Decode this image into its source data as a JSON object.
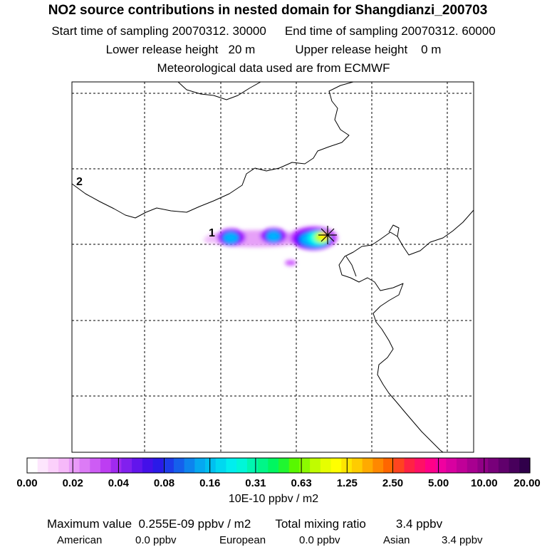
{
  "header": {
    "title": "NO2 source contributions in nested domain for Shangdianzi_200703",
    "start_label": "Start time of sampling 20070312. 30000",
    "end_label": "End time of sampling 20070312. 60000",
    "lower_label": "Lower release height   20 m",
    "upper_label": "Upper release height    0 m",
    "met_label": "Meteorological data used are from ECMWF"
  },
  "map": {
    "markers": [
      {
        "label": "1",
        "lon": 116.1,
        "lat": 40.0
      },
      {
        "label": "2",
        "lon": 100.0,
        "lat": 50.0
      }
    ],
    "station": {
      "name": "Shangdianzi",
      "symbol": "star-cross-icon"
    },
    "plume_colors": [
      "#cc55ff",
      "#a800ff",
      "#0000ff",
      "#00b0ff",
      "#00ffe8",
      "#b8ff00",
      "#ffff00",
      "#ffb000"
    ]
  },
  "colorbar": {
    "tick_labels": [
      "0.00",
      "0.02",
      "0.04",
      "0.08",
      "0.16",
      "0.31",
      "0.63",
      "1.25",
      "2.50",
      "5.00",
      "10.00",
      "20.00"
    ],
    "units": "10E-10 ppbv / m2",
    "colors": [
      "#ffffff",
      "#fde6fd",
      "#fbd0fb",
      "#f6b9f9",
      "#e99af8",
      "#dc7bf6",
      "#cd5cf4",
      "#bd3df2",
      "#a02af0",
      "#8120ee",
      "#6215ec",
      "#4410e9",
      "#2a1ae8",
      "#1d3cea",
      "#1560ec",
      "#0d84ee",
      "#05a8f0",
      "#00c0f0",
      "#00d8f0",
      "#00eeee",
      "#00f6d8",
      "#00f6b0",
      "#00f688",
      "#00f660",
      "#20f630",
      "#58f800",
      "#8cfa00",
      "#c0fc00",
      "#e6fe00",
      "#ffff00",
      "#ffe600",
      "#ffcc00",
      "#ffaa00",
      "#ff8800",
      "#ff6600",
      "#ff4420",
      "#ff2244",
      "#ff1066",
      "#ff0088",
      "#f000a0",
      "#d800a0",
      "#c00098",
      "#a80090",
      "#900086",
      "#78007a",
      "#60006c",
      "#48005c",
      "#30004a"
    ]
  },
  "summary": {
    "max_label": "Maximum value  0.255E-09 ppbv / m2",
    "total_label": "Total mixing ratio",
    "total_value": "3.4 ppbv",
    "american_label": "American",
    "american_value": "0.0 ppbv",
    "european_label": "European",
    "european_value": "0.0 ppbv",
    "asian_label": "Asian",
    "asian_value": "3.4 ppbv"
  }
}
